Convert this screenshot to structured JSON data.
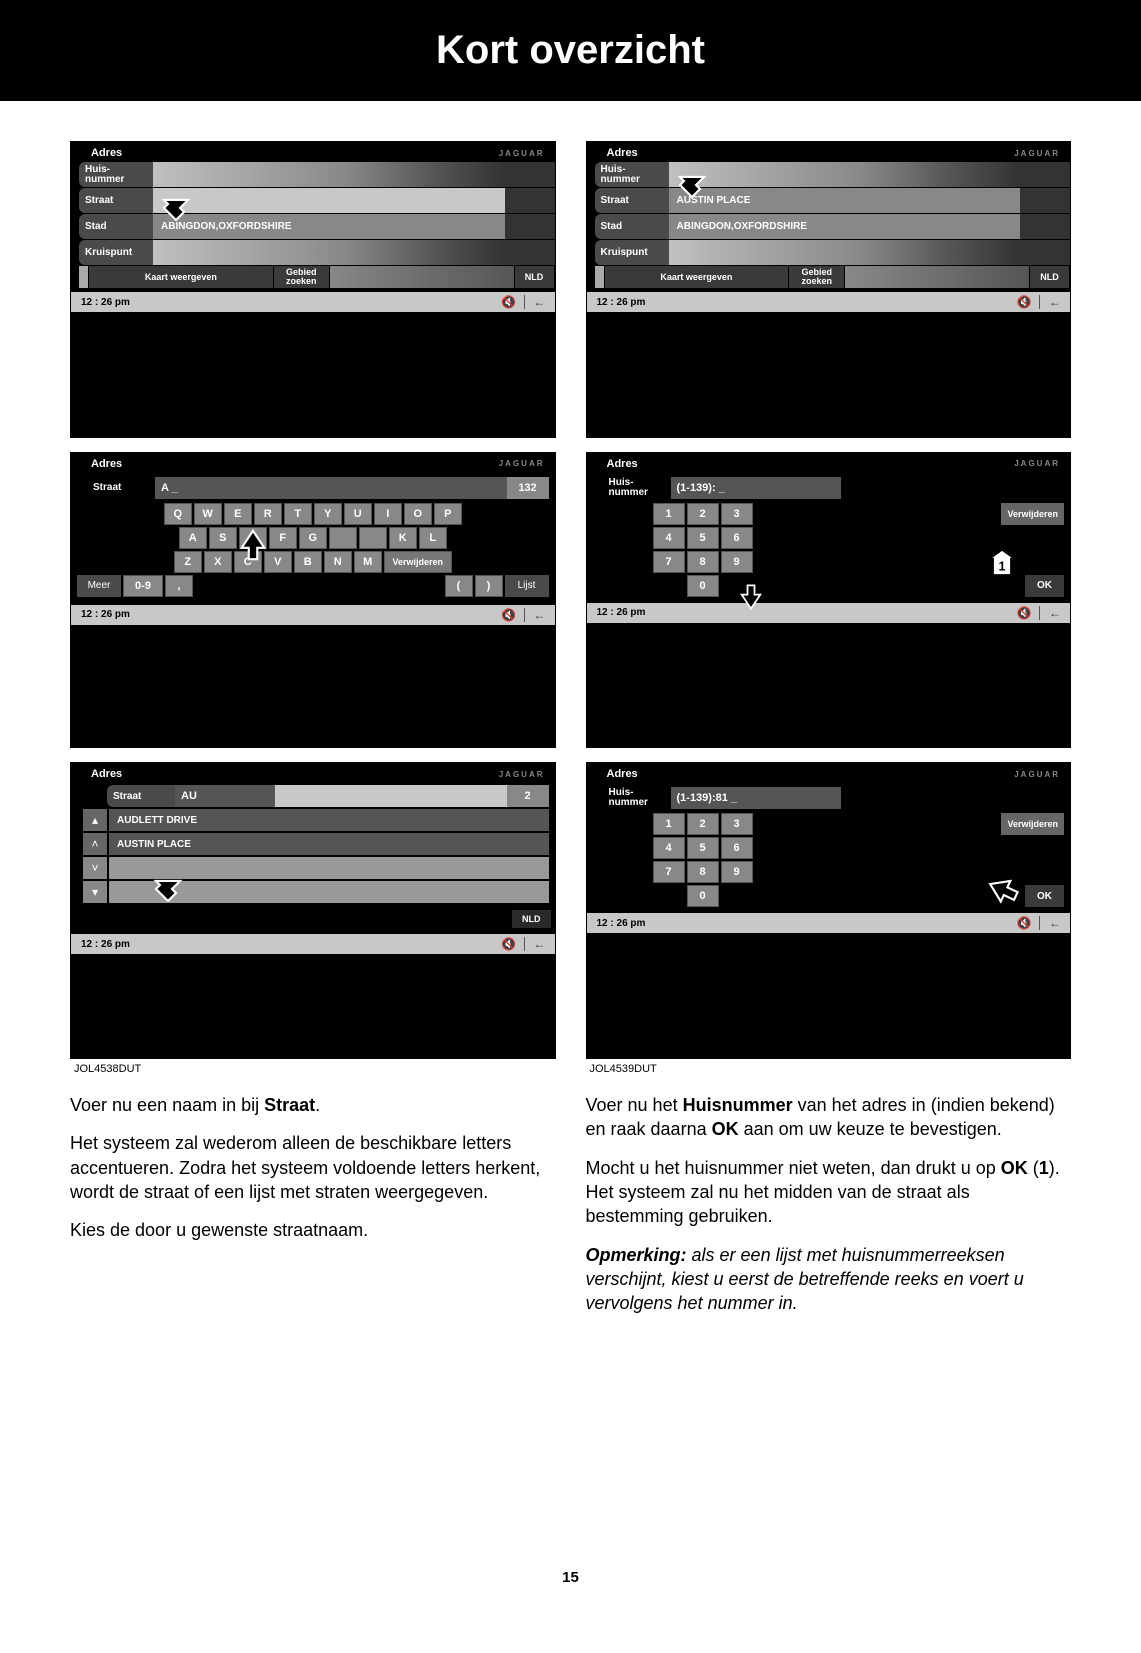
{
  "page": {
    "title": "Kort overzicht",
    "number": "15"
  },
  "common": {
    "brand": "JAGUAR",
    "time": "12 : 26 pm",
    "adres": "Adres",
    "huisnummer_l1": "Huis-",
    "huisnummer_l2": "nummer",
    "straat": "Straat",
    "stad": "Stad",
    "kruispunt": "Kruispunt",
    "kaart_weergeven": "Kaart weergeven",
    "gebied_l1": "Gebied",
    "gebied_l2": "zoeken",
    "nld": "NLD",
    "verwijderen": "Verwijderen",
    "ok": "OK",
    "meer": "Meer",
    "num_mode": "0-9",
    "comma": ",",
    "paren_l": "(",
    "paren_r": ")",
    "lijst": "Lijst"
  },
  "left": {
    "ref": "JOL4538DUT",
    "s1": {
      "stad_value": "ABINGDON,OXFORDSHIRE"
    },
    "s2": {
      "input_label": "Straat",
      "input_value": "A _",
      "count": "132",
      "row1": [
        "Q",
        "W",
        "E",
        "R",
        "T",
        "Y",
        "U",
        "I",
        "O",
        "P"
      ],
      "row2": [
        "A",
        "S",
        "D",
        "F",
        "G",
        "",
        "",
        "K",
        "L"
      ],
      "row3": [
        "Z",
        "X",
        "C",
        "V",
        "B",
        "N",
        "M"
      ]
    },
    "s3": {
      "straat_label": "Straat",
      "straat_value": "AU",
      "count": "2",
      "items": [
        "AUDLETT DRIVE",
        "AUSTIN PLACE"
      ]
    },
    "p1_pre": "Voer nu een naam in bij ",
    "p1_b": "Straat",
    "p1_post": ".",
    "p2": "Het systeem zal wederom alleen de beschikbare letters accentueren. Zodra het systeem voldoende letters herkent, wordt de straat of een lijst met straten weergegeven.",
    "p3": "Kies de door u gewenste straatnaam."
  },
  "right": {
    "ref": "JOL4539DUT",
    "s1": {
      "straat_value": "AUSTIN PLACE",
      "stad_value": "ABINGDON,OXFORDSHIRE"
    },
    "s2": {
      "input_value": "(1-139):   _",
      "callout": "1"
    },
    "s3": {
      "input_value": "(1-139):81       _"
    },
    "numpad": [
      "1",
      "2",
      "3",
      "4",
      "5",
      "6",
      "7",
      "8",
      "9",
      "0"
    ],
    "p1": "Voer nu het <b>Huisnummer</b> van het adres in (indien bekend) en raak daarna <b>OK</b> aan om uw keuze te bevestigen.",
    "p2": "Mocht u het huisnummer niet weten, dan drukt u op <b>OK</b> (<b>1</b>). Het systeem zal nu het midden van de straat als bestemming gebruiken.",
    "p3": "<b><i>Opmerking:</i></b> <i>als er een lijst met huisnummerreeksen verschijnt, kiest u eerst de betreffende reeks en voert u vervolgens het nummer in.</i>"
  }
}
